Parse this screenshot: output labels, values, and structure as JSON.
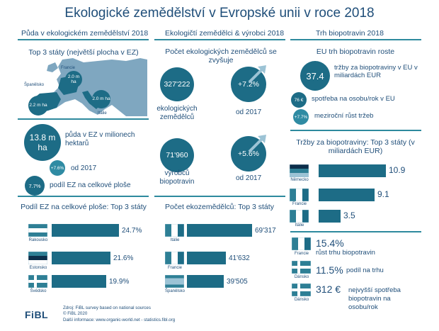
{
  "title": "Ekologické zemědělství v Evropské unii v roce 2018",
  "columns": {
    "land": "Půda v ekologickém zemědělství 2018",
    "farmers": "Ekologičtí zemědělci & výrobci 2018",
    "market": "Trh biopotravin 2018"
  },
  "land": {
    "top3_title": "Top 3 státy (největší plocha v EZ)",
    "map_labels": {
      "france": "Francie",
      "spain": "Španělsko",
      "italy": "Itálie"
    },
    "map_values": {
      "france": "2.0 m ha",
      "spain": "2.2 m ha",
      "italy": "2.0 m ha"
    },
    "area_value": "13.8 m ha",
    "area_desc": "půda v EZ v milionech hektarů",
    "growth_value": "+7.6%",
    "growth_desc": "od 2017",
    "share_value": "7.7%",
    "share_desc": "podíl EZ na celkové ploše"
  },
  "farmers": {
    "count_title": "Počet ekologických zemědělců se zvyšuje",
    "producers_value": "327'222",
    "producers_desc": "ekologických zemědělců",
    "producers_growth": "+7.2%",
    "producers_growth_desc": "od 2017",
    "processors_value": "71'960",
    "processors_desc": "výrobců biopotravin",
    "processors_growth": "+5.6%",
    "processors_growth_desc": "od 2017"
  },
  "market": {
    "eu_title": "EU trh biopotravin roste",
    "sales_value": "37.4",
    "sales_desc": "tržby za biopotraviny v EU v miliardách EUR",
    "per_capita_value": "76 €",
    "per_capita_desc": "spotřeba na osobu/rok v EU",
    "growth_value": "+7.7%",
    "growth_desc": "meziroční růst tržeb",
    "top3_title": "Tržby za biopotraviny: Top 3 státy (v miliardách EUR)",
    "facts": [
      {
        "value": "15.4%",
        "desc": "růst trhu biopotravin",
        "country": "Francie"
      },
      {
        "value": "11.5%",
        "desc": "podíl na trhu",
        "country": "Dánsko"
      },
      {
        "value": "312 €",
        "desc": "nejvyšší spotřeba biopotravin na osobu/rok",
        "country": "Dánsko"
      }
    ]
  },
  "chart_data": [
    {
      "type": "bar",
      "title": "Podíl EZ na celkové ploše: Top 3 státy",
      "categories": [
        "Rakousko",
        "Estonsko",
        "Švédsko"
      ],
      "values": [
        24.7,
        21.6,
        19.9
      ],
      "labels": [
        "24.7%",
        "21.6%",
        "19.9%"
      ],
      "flags": [
        "austria",
        "estonia",
        "sweden"
      ]
    },
    {
      "type": "bar",
      "title": "Počet ekozemědělců: Top 3 státy",
      "categories": [
        "Itálie",
        "Francie",
        "Španělsko"
      ],
      "values": [
        69317,
        41632,
        39505
      ],
      "labels": [
        "69'317",
        "41'632",
        "39'505"
      ],
      "flags": [
        "italy",
        "france",
        "spain"
      ]
    },
    {
      "type": "bar",
      "title": "Tržby za biopotraviny: Top 3 státy (v miliardách EUR)",
      "categories": [
        "Německo",
        "Francie",
        "Itálie"
      ],
      "values": [
        10.9,
        9.1,
        3.5
      ],
      "labels": [
        "10.9",
        "9.1",
        "3.5"
      ],
      "flags": [
        "germany",
        "france",
        "italy"
      ]
    }
  ],
  "footer": {
    "logo": "FiBL",
    "line1": "Zdroj: FiBL survey based on national sources",
    "line2": "© FiBL 2020",
    "line3": "Další informace: www.organic-world.net - statistics.fibl.org"
  }
}
